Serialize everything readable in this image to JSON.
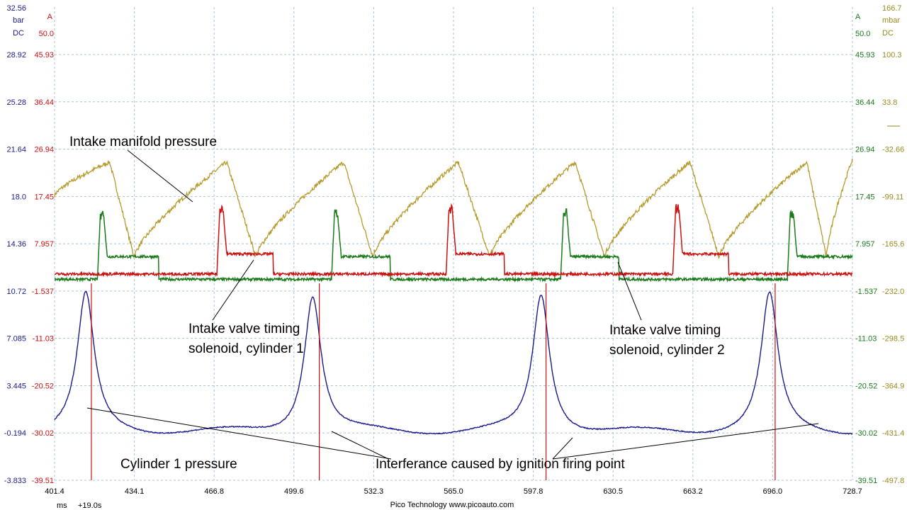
{
  "chart_data": {
    "type": "line",
    "title": "",
    "x": {
      "unit": "ms",
      "offset_label": "+19.0s",
      "range": [
        401.4,
        728.7
      ],
      "ticks": [
        "401.4",
        "434.1",
        "466.8",
        "499.6",
        "532.3",
        "565.0",
        "597.8",
        "630.5",
        "663.2",
        "696.0",
        "728.7"
      ]
    },
    "axes": {
      "left_blue": {
        "unit": "bar",
        "coupling": "DC",
        "color": "#1a1a8c",
        "range": [
          -3.833,
          32.56
        ],
        "header": "32.56",
        "ticks": [
          "28.92",
          "25.28",
          "21.64",
          "18.0",
          "14.36",
          "10.72",
          "7.085",
          "3.445",
          "-0.194",
          "-3.833"
        ]
      },
      "left_red": {
        "unit": "A",
        "color": "#cc1111",
        "range": [
          -39.51,
          50.0
        ],
        "header": "50.0",
        "ticks": [
          "45.93",
          "36.44",
          "26.94",
          "17.45",
          "7.957",
          "-1.537",
          "-11.03",
          "-20.52",
          "-30.02",
          "-39.51"
        ]
      },
      "right_green": {
        "unit": "A",
        "color": "#1a7a1a",
        "range": [
          -39.51,
          50.0
        ],
        "header": "50.0",
        "ticks": [
          "45.93",
          "36.44",
          "26.94",
          "17.45",
          "7.957",
          "-1.537",
          "-11.03",
          "-20.52",
          "-30.02",
          "-39.51"
        ]
      },
      "right_gold": {
        "unit": "mbar",
        "coupling": "DC",
        "color": "#9a8a22",
        "range": [
          -497.8,
          166.7
        ],
        "header": "166.7",
        "ticks": [
          "100.3",
          "33.8",
          "-32.66",
          "-99.11",
          "-165.6",
          "-232.0",
          "-298.5",
          "-364.9",
          "-431.4",
          "-497.8"
        ]
      }
    },
    "series": [
      {
        "name": "Cylinder 1 pressure",
        "axis": "left_blue",
        "color": "#1a1a8c",
        "baseline": -0.194,
        "peaks_ms": [
          414.2,
          507.3,
          601.0,
          694.7
        ],
        "peak_value": 10.4
      },
      {
        "name": "Intake manifold pressure",
        "axis": "right_gold",
        "color": "#b59a2c",
        "rise_start_ms": [
          401.4,
          434.0,
          484.0,
          532.0,
          580.0,
          627.0,
          674.0,
          718.0
        ],
        "max_ms": [
          424.0,
          472.0,
          520.0,
          567.0,
          615.0,
          662.0,
          710.0
        ],
        "min_ms": [
          434.0,
          484.0,
          532.0,
          580.0,
          627.0,
          674.0,
          718.0
        ],
        "max_value": -51.0,
        "min_value": -184.0
      },
      {
        "name": "Intake valve timing solenoid, cylinder 1",
        "axis": "left_red",
        "color": "#cc1111",
        "pulses_ms": [
          [
            468.0,
            491.0
          ],
          [
            562.0,
            586.0
          ],
          [
            655.0,
            678.0
          ]
        ],
        "spike_value": 12.0,
        "hold_value": 3.3,
        "off_value": -0.5
      },
      {
        "name": "Intake valve timing solenoid, cylinder 2",
        "axis": "right_green",
        "color": "#1a7a1a",
        "pulses_ms": [
          [
            419.0,
            444.0
          ],
          [
            515.0,
            539.0
          ],
          [
            609.0,
            633.0
          ],
          [
            702.0,
            728.7
          ]
        ],
        "spike_value": 11.0,
        "hold_value": 2.8,
        "off_value": -1.5
      },
      {
        "name": "Ignition interference",
        "axis": "left_red",
        "color": "#cc1111",
        "events_ms": [
          416.5,
          510.0,
          603.0,
          697.0
        ]
      }
    ],
    "annotations": [
      {
        "text": "Intake manifold pressure"
      },
      {
        "text": "Intake valve timing"
      },
      {
        "text": "solenoid, cylinder 1"
      },
      {
        "text": "Intake valve timing"
      },
      {
        "text": "solenoid, cylinder 2"
      },
      {
        "text": "Cylinder 1 pressure"
      },
      {
        "text": "Interferance caused by ignition firing point"
      }
    ],
    "footer": "Pico Technology   www.picoauto.com",
    "grid": true
  }
}
